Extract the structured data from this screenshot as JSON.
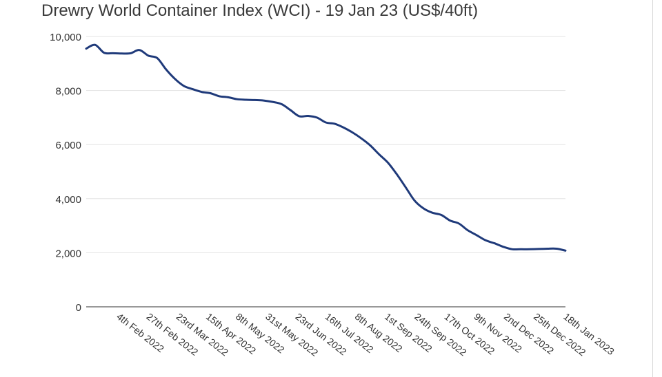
{
  "chart_data": {
    "type": "line",
    "title": "Drewry World Container Index (WCI) - 19 Jan 23 (US$/40ft)",
    "xlabel": "",
    "ylabel": "",
    "ylim": [
      0,
      10000
    ],
    "yticks": [
      0,
      2000,
      4000,
      6000,
      8000,
      10000
    ],
    "ytick_labels": [
      "0",
      "2,000",
      "4,000",
      "6,000",
      "8,000",
      "10,000"
    ],
    "grid": true,
    "legend": "none",
    "colors": {
      "line": "#1f3a7a",
      "grid": "#e3e3e3",
      "axis": "#333333",
      "text": "#333333"
    },
    "xtick_labels": [
      "4th Feb 2022",
      "27th Feb 2022",
      "23rd Mar 2022",
      "15th Apr 2022",
      "8th May 2022",
      "31st May 2022",
      "23rd Jun 2022",
      "16th Jul 2022",
      "8th Aug 2022",
      "1st Sep 2022",
      "24th Sep 2022",
      "17th Oct 2022",
      "9th Nov 2022",
      "2nd Dec 2022",
      "25th Dec 2022",
      "18th Jan 2023"
    ],
    "series": [
      {
        "name": "WCI (US$/40ft)",
        "x": [
          "6 Jan 2022",
          "13 Jan 2022",
          "20 Jan 2022",
          "27 Jan 2022",
          "3 Feb 2022",
          "10 Feb 2022",
          "17 Feb 2022",
          "24 Feb 2022",
          "3 Mar 2022",
          "10 Mar 2022",
          "17 Mar 2022",
          "24 Mar 2022",
          "31 Mar 2022",
          "7 Apr 2022",
          "14 Apr 2022",
          "21 Apr 2022",
          "28 Apr 2022",
          "5 May 2022",
          "12 May 2022",
          "19 May 2022",
          "26 May 2022",
          "2 Jun 2022",
          "9 Jun 2022",
          "16 Jun 2022",
          "23 Jun 2022",
          "30 Jun 2022",
          "7 Jul 2022",
          "14 Jul 2022",
          "21 Jul 2022",
          "28 Jul 2022",
          "4 Aug 2022",
          "11 Aug 2022",
          "18 Aug 2022",
          "25 Aug 2022",
          "1 Sep 2022",
          "8 Sep 2022",
          "15 Sep 2022",
          "22 Sep 2022",
          "29 Sep 2022",
          "6 Oct 2022",
          "13 Oct 2022",
          "20 Oct 2022",
          "27 Oct 2022",
          "3 Nov 2022",
          "10 Nov 2022",
          "17 Nov 2022",
          "24 Nov 2022",
          "1 Dec 2022",
          "8 Dec 2022",
          "15 Dec 2022",
          "22 Dec 2022",
          "29 Dec 2022",
          "5 Jan 2023",
          "12 Jan 2023",
          "19 Jan 2023"
        ],
        "values": [
          9550,
          9690,
          9400,
          9380,
          9370,
          9380,
          9500,
          9290,
          9200,
          8780,
          8430,
          8170,
          8050,
          7950,
          7900,
          7790,
          7750,
          7680,
          7660,
          7650,
          7630,
          7580,
          7500,
          7280,
          7050,
          7060,
          7000,
          6820,
          6770,
          6630,
          6450,
          6230,
          5970,
          5640,
          5330,
          4900,
          4420,
          3930,
          3640,
          3480,
          3400,
          3190,
          3080,
          2830,
          2650,
          2460,
          2350,
          2220,
          2130,
          2130,
          2130,
          2140,
          2150,
          2150,
          2080
        ]
      }
    ]
  }
}
